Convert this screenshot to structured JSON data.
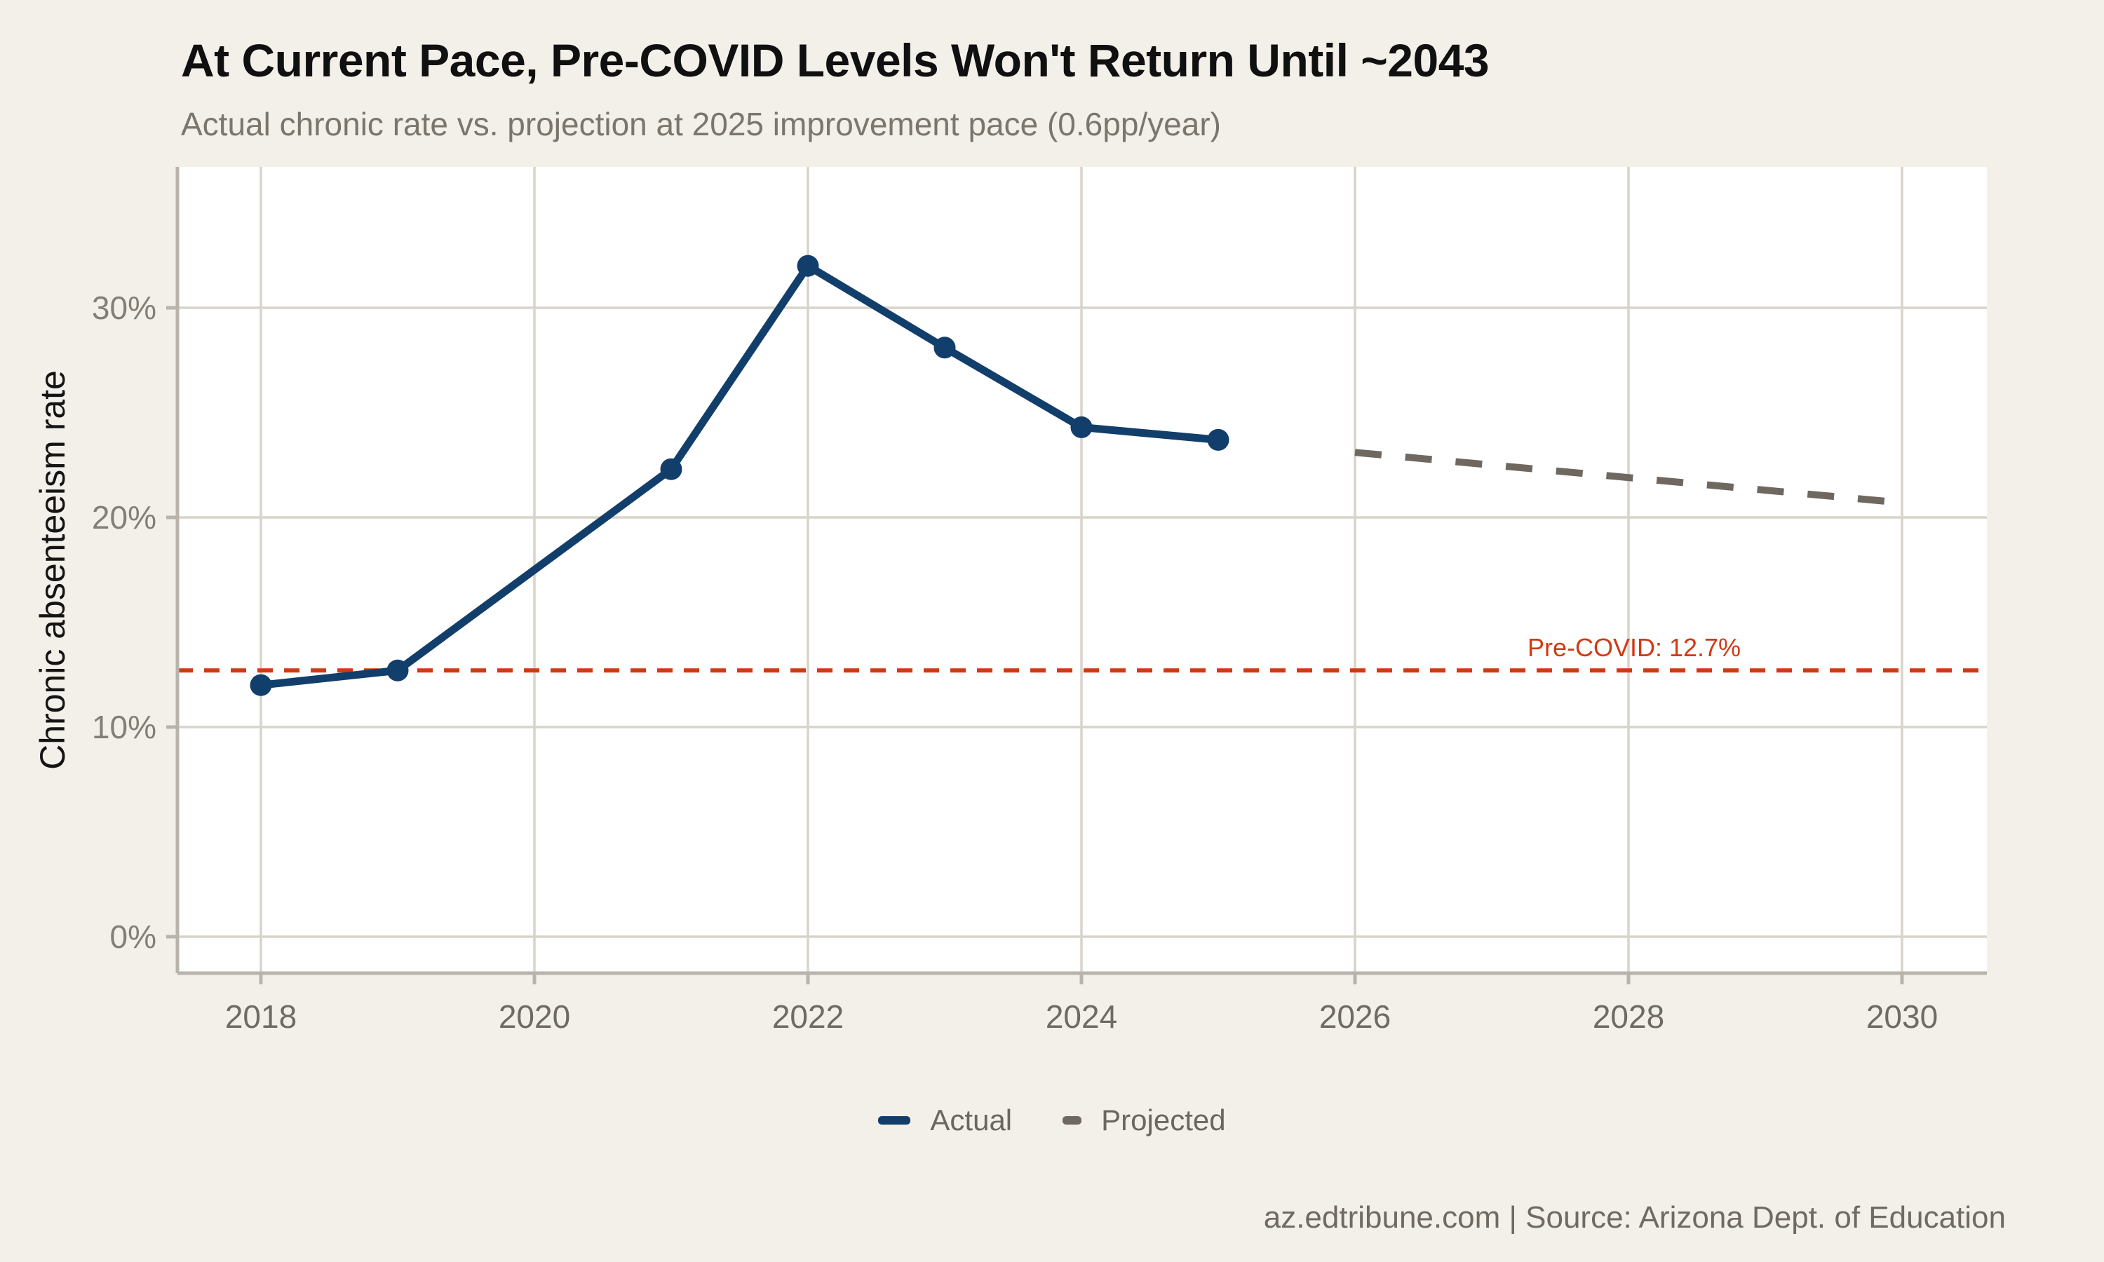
{
  "header": {
    "title": "At Current Pace, Pre-COVID Levels Won't Return Until ~2043",
    "subtitle": "Actual chronic rate vs. projection at 2025 improvement pace (0.6pp/year)"
  },
  "footer": {
    "text": "az.edtribune.com | Source: Arizona Dept. of Education"
  },
  "chart_data": {
    "type": "line",
    "title": "At Current Pace, Pre-COVID Levels Won't Return Until ~2043",
    "subtitle": "Actual chronic rate vs. projection at 2025 improvement pace (0.6pp/year)",
    "xlabel": "",
    "ylabel": "Chronic absenteeism rate",
    "x_ticks": [
      {
        "value": 2018,
        "label": "2018"
      },
      {
        "value": 2020,
        "label": "2020"
      },
      {
        "value": 2022,
        "label": "2022"
      },
      {
        "value": 2024,
        "label": "2024"
      },
      {
        "value": 2026,
        "label": "2026"
      },
      {
        "value": 2028,
        "label": "2028"
      },
      {
        "value": 2030,
        "label": "2030"
      }
    ],
    "y_ticks": [
      {
        "value": 0,
        "label": "0%"
      },
      {
        "value": 10,
        "label": "10%"
      },
      {
        "value": 20,
        "label": "20%"
      },
      {
        "value": 30,
        "label": "30%"
      }
    ],
    "x_domain": [
      2017.4,
      2030.6
    ],
    "y_domain": [
      -1.7,
      36.7
    ],
    "grid": true,
    "legend_position": "bottom-center",
    "series": [
      {
        "name": "Actual",
        "style": "solid",
        "markers": true,
        "color": "#123e6b",
        "points": [
          [
            2018,
            12.0
          ],
          [
            2019,
            12.7
          ],
          [
            2021,
            22.3
          ],
          [
            2022,
            32.0
          ],
          [
            2023,
            28.1
          ],
          [
            2024,
            24.3
          ],
          [
            2025,
            23.7
          ]
        ]
      },
      {
        "name": "Projected",
        "style": "dashed",
        "markers": false,
        "color": "#6e6860",
        "points": [
          [
            2026,
            23.1
          ],
          [
            2027,
            22.5
          ],
          [
            2028,
            21.9
          ],
          [
            2029,
            21.3
          ],
          [
            2030,
            20.7
          ]
        ]
      }
    ],
    "reference_line": {
      "value": 12.7,
      "label": "Pre-COVID: 12.7%",
      "color": "#d13a15",
      "style": "dashed"
    },
    "colors": {
      "background": "#f3f0e9",
      "panel": "#ffffff",
      "grid": "#d9d4ca",
      "axis": "#b9b4ab",
      "x_tick_label": "#6f6a62",
      "y_tick_label": "#847f76"
    }
  }
}
